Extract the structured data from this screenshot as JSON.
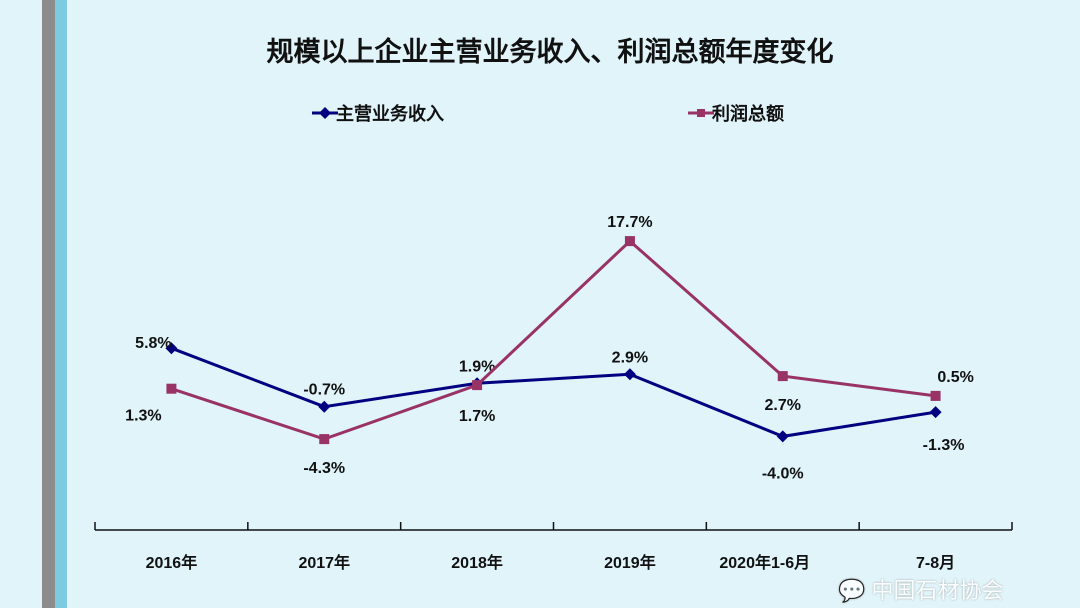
{
  "chart_data": {
    "type": "line",
    "title": "规模以上企业主营业务收入、利润总额年度变化",
    "categories": [
      "2016年",
      "2017年",
      "2018年",
      "2019年",
      "2020年1-6月",
      "7-8月"
    ],
    "series": [
      {
        "name": "主营业务收入",
        "color": "#000080",
        "marker": "diamond",
        "values": [
          5.8,
          -0.7,
          1.9,
          2.9,
          -4.0,
          -1.3
        ],
        "labels": [
          "5.8%",
          "-0.7%",
          "1.9%",
          "2.9%",
          "-4.0%",
          "-1.3%"
        ]
      },
      {
        "name": "利润总额",
        "color": "#993366",
        "marker": "square",
        "values": [
          1.3,
          -4.3,
          1.7,
          17.7,
          2.7,
          0.5
        ],
        "labels": [
          "1.3%",
          "-4.3%",
          "1.7%",
          "17.7%",
          "2.7%",
          "0.5%"
        ]
      }
    ],
    "ylim": [
      -14.4,
      25
    ],
    "grid": false,
    "legend": "top"
  },
  "watermark": "中国石材协会"
}
